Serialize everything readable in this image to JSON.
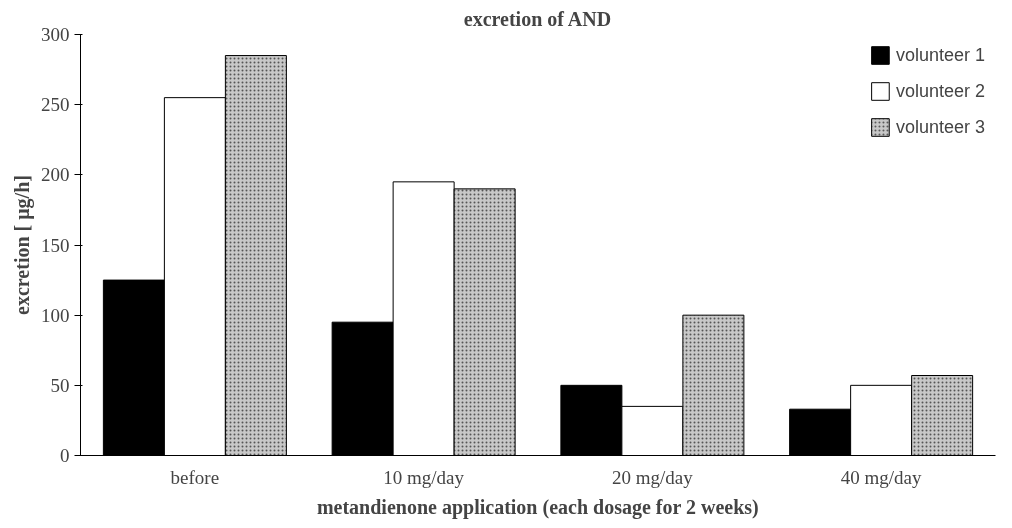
{
  "chart_data": {
    "type": "bar",
    "title": "excretion of AND",
    "xlabel": "metandienone application (each dosage for 2 weeks)",
    "ylabel": "excretion [ μg/h]",
    "categories": [
      "before",
      "10 mg/day",
      "20 mg/day",
      "40 mg/day"
    ],
    "series": [
      {
        "name": "volunteer 1",
        "color": "#000000",
        "values": [
          125,
          95,
          50,
          33
        ]
      },
      {
        "name": "volunteer 2",
        "color": "#ffffff",
        "values": [
          255,
          195,
          35,
          50
        ]
      },
      {
        "name": "volunteer 3",
        "color": "#c8c8c8",
        "values": [
          285,
          190,
          100,
          57
        ]
      }
    ],
    "ylim": [
      0,
      300
    ],
    "yticks": [
      0,
      50,
      100,
      150,
      200,
      250,
      300
    ],
    "grid": false,
    "legend": "top right"
  }
}
